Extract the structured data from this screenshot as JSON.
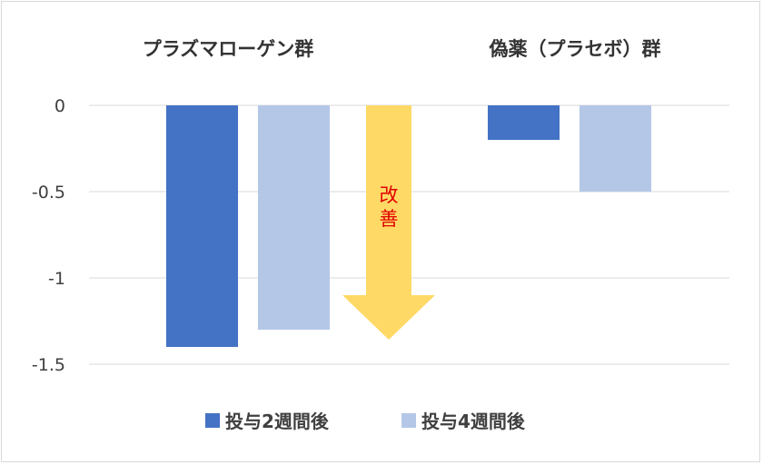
{
  "chart_data": {
    "type": "bar",
    "groups": [
      "プラズマローゲン群",
      "偽薬（プラセボ）群"
    ],
    "series": [
      {
        "name": "投与2週間後",
        "color": "#4472c4",
        "values": [
          -1.4,
          -0.2
        ]
      },
      {
        "name": "投与4週間後",
        "color": "#b4c7e7",
        "values": [
          -1.3,
          -0.5
        ]
      }
    ],
    "y_ticks": [
      "0",
      "-0.5",
      "-1",
      "-1.5"
    ],
    "y_tick_values": [
      0,
      -0.5,
      -1,
      -1.5
    ],
    "ylim": [
      -1.5,
      0
    ],
    "grid": true,
    "legend_position": "bottom",
    "annotation": {
      "text": [
        "改",
        "善"
      ],
      "arrow_color": "#ffd966",
      "direction": "down",
      "text_color": "#e00000"
    }
  }
}
